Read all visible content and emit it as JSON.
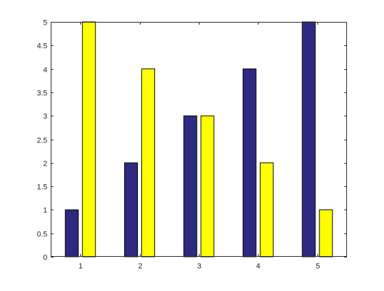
{
  "chart_data": {
    "type": "bar",
    "categories": [
      "1",
      "2",
      "3",
      "4",
      "5"
    ],
    "series": [
      {
        "values": [
          1,
          2,
          3,
          4,
          5
        ],
        "color": "#2E2A82"
      },
      {
        "values": [
          5,
          4,
          3,
          2,
          1
        ],
        "color": "#FFFF00"
      }
    ],
    "ylim": [
      0,
      5
    ],
    "yticks": [
      "0",
      "0.5",
      "1",
      "1.5",
      "2",
      "2.5",
      "3",
      "3.5",
      "4",
      "4.5",
      "5"
    ],
    "xlabel": "",
    "ylabel": "",
    "title": "",
    "grid": false,
    "legend": "none",
    "box": true,
    "axis_color": "#262626",
    "bar_edge_color": "#000000"
  }
}
